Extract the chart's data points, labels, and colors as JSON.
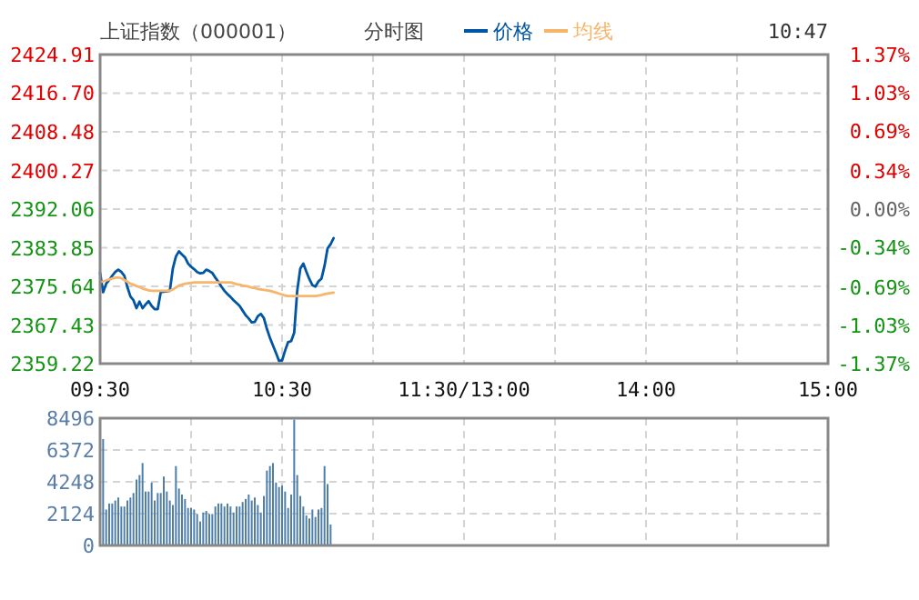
{
  "chart_data": [
    {
      "type": "line",
      "title": "上证指数（000001）",
      "subtitle": "分时图",
      "annotations": [
        "10:47"
      ],
      "legend": "top",
      "grid": true,
      "categories": [
        "09:30",
        null,
        null,
        null,
        null,
        null,
        null,
        null,
        null,
        null,
        null,
        null,
        null,
        null,
        null,
        null,
        null,
        null,
        null,
        null,
        null,
        null,
        null,
        null,
        null,
        null,
        null,
        null,
        null,
        null,
        null,
        null,
        null,
        null,
        null,
        null,
        null,
        null,
        null,
        null,
        null,
        null,
        null,
        null,
        null,
        null,
        null,
        null,
        null,
        null,
        null,
        null,
        null,
        null,
        null,
        null,
        null,
        null,
        null,
        null,
        "10:30",
        null,
        null,
        null,
        null,
        null,
        null,
        null,
        null,
        null,
        null,
        null,
        null,
        null,
        null,
        null,
        null,
        null,
        null,
        null,
        null,
        null,
        null,
        null,
        null,
        null,
        null,
        null,
        null,
        null,
        null,
        null,
        null,
        null,
        null,
        null,
        null,
        null,
        null,
        null,
        null,
        null,
        null,
        null,
        null,
        null,
        null,
        null,
        null,
        null,
        null,
        null,
        null,
        null,
        null,
        null,
        null,
        null,
        null,
        null,
        "11:30/13:00",
        null,
        null,
        null,
        null,
        null,
        null,
        null,
        null,
        null,
        null,
        null,
        null,
        null,
        null,
        null,
        null,
        null,
        null,
        null,
        null,
        null,
        null,
        null,
        null,
        null,
        null,
        null,
        null,
        null,
        null,
        null,
        null,
        null,
        null,
        null,
        null,
        null,
        null,
        null,
        null,
        null,
        null,
        null,
        null,
        null,
        null,
        null,
        null,
        null,
        null,
        null,
        null,
        null,
        null,
        null,
        null,
        null,
        null,
        null,
        "14:00",
        null,
        null,
        null,
        null,
        null,
        null,
        null,
        null,
        null,
        null,
        null,
        null,
        null,
        null,
        null,
        null,
        null,
        null,
        null,
        null,
        null,
        null,
        null,
        null,
        null,
        null,
        null,
        null,
        null,
        null,
        null,
        null,
        null,
        null,
        null,
        null,
        null,
        null,
        null,
        null,
        null,
        null,
        null,
        null,
        null,
        null,
        null,
        null,
        null,
        null,
        null,
        null,
        null,
        null,
        null,
        null,
        null,
        null,
        null,
        "15:00"
      ],
      "ylim": [
        2359.22,
        2424.91
      ],
      "yticks": [
        2359.22,
        2367.43,
        2375.64,
        2383.85,
        2392.06,
        2400.27,
        2408.48,
        {
          "value": 2416.7,
          "label": "2416.70"
        },
        2424.91
      ],
      "y2lim": [
        -1.37,
        1.37
      ],
      "y2ticks": [
        {
          "value": -1.37,
          "label": "-1.37%"
        },
        {
          "value": -1.03,
          "label": "-1.03%"
        },
        {
          "value": -0.69,
          "label": "-0.69%"
        },
        {
          "value": -0.34,
          "label": "-0.34%"
        },
        {
          "value": 0,
          "label": "0.00%"
        },
        {
          "value": 0.34,
          "label": "0.34%"
        },
        {
          "value": 0.69,
          "label": "0.69%"
        },
        {
          "value": 1.03,
          "label": "1.03%"
        },
        {
          "value": 1.37,
          "label": "1.37%"
        }
      ],
      "series": [
        {
          "name": "价格",
          "color": "#0055a5",
          "values": [
            2378.5,
            2374.4,
            2376.2,
            2377.0,
            2377.9,
            2378.7,
            2379.2,
            2378.7,
            2377.9,
            2375.5,
            2373.5,
            2372.7,
            2371.0,
            2372.4,
            2371.0,
            2371.8,
            2372.5,
            2371.5,
            2370.8,
            2370.8,
            2374.4,
            2374.5,
            2374.6,
            2374.7,
            2379.5,
            2382.0,
            2383.1,
            2382.4,
            2381.8,
            2380.5,
            2379.8,
            2379.3,
            2378.7,
            2378.4,
            2378.5,
            2379.2,
            2378.9,
            2378.5,
            2377.5,
            2376.6,
            2375.6,
            2374.7,
            2374.0,
            2373.4,
            2372.7,
            2372.1,
            2371.5,
            2370.5,
            2369.5,
            2368.8,
            2368.0,
            2368.1,
            2369.3,
            2369.8,
            2368.9,
            2366.6,
            2364.7,
            2363.1,
            2361.5,
            2359.8,
            2359.9,
            2362.0,
            2363.8,
            2364.0,
            2365.8,
            2374.7,
            2379.4,
            2380.5,
            2378.8,
            2377.2,
            2375.9,
            2375.6,
            2376.7,
            2377.3,
            2380.0,
            2383.7,
            2384.6,
            2385.9,
            null,
            null,
            null,
            null,
            null,
            null,
            null,
            null,
            null,
            null,
            null,
            null,
            null,
            null,
            null,
            null,
            null,
            null,
            null,
            null,
            null,
            null,
            null,
            null,
            null,
            null,
            null,
            null,
            null,
            null,
            null,
            null,
            null,
            null,
            null,
            null,
            null,
            null,
            null,
            null,
            null,
            null,
            null,
            null,
            null,
            null,
            null,
            null,
            null,
            null,
            null,
            null,
            null,
            null,
            null,
            null,
            null,
            null,
            null,
            null,
            null,
            null,
            null,
            null,
            null,
            null,
            null,
            null,
            null,
            null,
            null,
            null,
            null,
            null,
            null,
            null,
            null,
            null,
            null,
            null,
            null,
            null,
            null,
            null,
            null,
            null,
            null,
            null,
            null,
            null,
            null,
            null,
            null,
            null,
            null,
            null,
            null,
            null,
            null,
            null,
            null,
            null,
            null,
            null,
            null,
            null,
            null,
            null,
            null,
            null,
            null,
            null,
            null,
            null,
            null,
            null,
            null,
            null,
            null,
            null,
            null,
            null,
            null,
            null,
            null,
            null,
            null,
            null,
            null,
            null,
            null,
            null,
            null,
            null,
            null,
            null,
            null,
            null,
            null,
            null,
            null,
            null,
            null,
            null,
            null,
            null,
            null,
            null,
            null,
            null,
            null,
            null,
            null,
            null,
            null,
            null,
            null,
            null,
            null,
            null,
            null,
            null,
            null
          ]
        },
        {
          "name": "均线",
          "color": "#f7b56b",
          "values": [
            2376.6,
            2376.7,
            2376.9,
            2377.1,
            2377.3,
            2377.5,
            2377.5,
            2377.4,
            2377.0,
            2376.6,
            2376.2,
            2376.0,
            2375.7,
            2375.5,
            2375.2,
            2375.0,
            2374.8,
            2374.7,
            2374.7,
            2374.7,
            2374.7,
            2374.7,
            2374.7,
            2374.7,
            2375.0,
            2375.4,
            2375.8,
            2376.0,
            2376.2,
            2376.3,
            2376.4,
            2376.5,
            2376.5,
            2376.5,
            2376.5,
            2376.5,
            2376.5,
            2376.5,
            2376.5,
            2376.5,
            2376.5,
            2376.5,
            2376.5,
            2376.5,
            2376.3,
            2376.1,
            2376.0,
            2375.8,
            2375.7,
            2375.6,
            2375.4,
            2375.3,
            2375.1,
            2375.0,
            2374.9,
            2374.8,
            2374.7,
            2374.5,
            2374.3,
            2374.1,
            2373.9,
            2373.7,
            2373.6,
            2373.6,
            2373.6,
            2373.6,
            2373.6,
            2373.6,
            2373.6,
            2373.6,
            2373.6,
            2373.6,
            2373.7,
            2373.8,
            2374.0,
            2374.1,
            2374.2,
            2374.3,
            null,
            null,
            null,
            null,
            null,
            null,
            null,
            null,
            null,
            null,
            null,
            null,
            null,
            null,
            null,
            null,
            null,
            null,
            null,
            null,
            null,
            null,
            null,
            null,
            null,
            null,
            null,
            null,
            null,
            null,
            null,
            null,
            null,
            null,
            null,
            null,
            null,
            null,
            null,
            null,
            null,
            null,
            null,
            null,
            null,
            null,
            null,
            null,
            null,
            null,
            null,
            null,
            null,
            null,
            null,
            null,
            null,
            null,
            null,
            null,
            null,
            null,
            null,
            null,
            null,
            null,
            null,
            null,
            null,
            null,
            null,
            null,
            null,
            null,
            null,
            null,
            null,
            null,
            null,
            null,
            null,
            null,
            null,
            null,
            null,
            null,
            null,
            null,
            null,
            null,
            null,
            null,
            null,
            null,
            null,
            null,
            null,
            null,
            null,
            null,
            null,
            null,
            null,
            null,
            null,
            null,
            null,
            null,
            null,
            null,
            null,
            null,
            null,
            null,
            null,
            null,
            null,
            null,
            null,
            null,
            null,
            null,
            null,
            null,
            null,
            null,
            null,
            null,
            null,
            null,
            null,
            null,
            null,
            null,
            null,
            null,
            null,
            null,
            null,
            null,
            null,
            null,
            null,
            null,
            null,
            null,
            null,
            null,
            null,
            null,
            null,
            null,
            null,
            null,
            null,
            null,
            null,
            null,
            null,
            null,
            null,
            null,
            null
          ]
        }
      ]
    },
    {
      "type": "bar",
      "grid": true,
      "tick_labels": "y",
      "color": "#4f7fa8",
      "categories": [
        null,
        null,
        null,
        null,
        null,
        null,
        null,
        null,
        null,
        null,
        null,
        null,
        null,
        null,
        null,
        null,
        null,
        null,
        null,
        null,
        null,
        null,
        null,
        null,
        null,
        null,
        null,
        null,
        null,
        null,
        null,
        null,
        null,
        null,
        null,
        null,
        null,
        null,
        null,
        null,
        null,
        null,
        null,
        null,
        null,
        null,
        null,
        null,
        null,
        null,
        null,
        null,
        null,
        null,
        null,
        null,
        null,
        null,
        null,
        null,
        null,
        null,
        null,
        null,
        null,
        null,
        null,
        null,
        null,
        null,
        null,
        null,
        null,
        null,
        null,
        null,
        null,
        null,
        null,
        null,
        null,
        null,
        null,
        null,
        null,
        null,
        null,
        null,
        null,
        null,
        null,
        null,
        null,
        null,
        null,
        null,
        null,
        null,
        null,
        null,
        null,
        null,
        null,
        null,
        null,
        null,
        null,
        null,
        null,
        null,
        null,
        null,
        null,
        null,
        null,
        null,
        null,
        null,
        null,
        null,
        null,
        null,
        null,
        null,
        null,
        null,
        null,
        null,
        null,
        null,
        null,
        null,
        null,
        null,
        null,
        null,
        null,
        null,
        null,
        null,
        null,
        null,
        null,
        null,
        null,
        null,
        null,
        null,
        null,
        null,
        null,
        null,
        null,
        null,
        null,
        null,
        null,
        null,
        null,
        null,
        null,
        null,
        null,
        null,
        null,
        null,
        null,
        null,
        null,
        null,
        null,
        null,
        null,
        null,
        null,
        null,
        null,
        null,
        null,
        null,
        null,
        null,
        null,
        null,
        null,
        null,
        null,
        null,
        null,
        null,
        null,
        null,
        null,
        null,
        null,
        null,
        null,
        null,
        null,
        null,
        null,
        null,
        null,
        null,
        null,
        null,
        null,
        null,
        null,
        null,
        null,
        null,
        null,
        null,
        null,
        null,
        null,
        null,
        null,
        null,
        null,
        null,
        null,
        null,
        null,
        null,
        null,
        null,
        null,
        null,
        null,
        null,
        null,
        null,
        null,
        null,
        null,
        null,
        null,
        null,
        null
      ],
      "ylim": [
        0,
        8496
      ],
      "yticks": [
        0,
        2124,
        4248,
        6372,
        8496
      ],
      "values": [
        null,
        7100,
        2400,
        2800,
        2800,
        3000,
        3200,
        2600,
        2600,
        3000,
        3200,
        3500,
        4400,
        4700,
        5500,
        3600,
        3600,
        4200,
        3000,
        3500,
        3500,
        4600,
        3600,
        3000,
        2700,
        5300,
        3800,
        3400,
        3100,
        2500,
        2500,
        2400,
        2100,
        1600,
        2200,
        2300,
        2100,
        2100,
        2600,
        2800,
        2800,
        2600,
        2800,
        2600,
        2200,
        2600,
        2600,
        2900,
        3100,
        3400,
        3000,
        3200,
        2700,
        2200,
        3300,
        5000,
        5300,
        5500,
        4200,
        3900,
        4000,
        3600,
        2500,
        3400,
        8400,
        4700,
        3300,
        2600,
        2000,
        1800,
        2400,
        1900,
        2400,
        2500,
        5300,
        4100,
        1400,
        null,
        null,
        null,
        null,
        null,
        null,
        null,
        null,
        null,
        null,
        null,
        null,
        null,
        null,
        null,
        null,
        null,
        null,
        null,
        null,
        null,
        null,
        null,
        null,
        null,
        null,
        null,
        null,
        null,
        null,
        null,
        null,
        null,
        null,
        null,
        null,
        null,
        null,
        null,
        null,
        null,
        null,
        null,
        null,
        null,
        null,
        null,
        null,
        null,
        null,
        null,
        null,
        null,
        null,
        null,
        null,
        null,
        null,
        null,
        null,
        null,
        null,
        null,
        null,
        null,
        null,
        null,
        null,
        null,
        null,
        null,
        null,
        null,
        null,
        null,
        null,
        null,
        null,
        null,
        null,
        null,
        null,
        null,
        null,
        null,
        null,
        null,
        null,
        null,
        null,
        null,
        null,
        null,
        null,
        null,
        null,
        null,
        null,
        null,
        null,
        null,
        null,
        null,
        null,
        null,
        null,
        null,
        null,
        null,
        null,
        null,
        null,
        null,
        null,
        null,
        null,
        null,
        null,
        null,
        null,
        null,
        null,
        null,
        null,
        null,
        null,
        null,
        null,
        null,
        null,
        null,
        null,
        null,
        null,
        null,
        null,
        null,
        null,
        null,
        null,
        null,
        null,
        null,
        null,
        null,
        null,
        null,
        null,
        null,
        null,
        null,
        null,
        null,
        null,
        null,
        null,
        null,
        null,
        null,
        null,
        null,
        null,
        null,
        null
      ]
    }
  ]
}
